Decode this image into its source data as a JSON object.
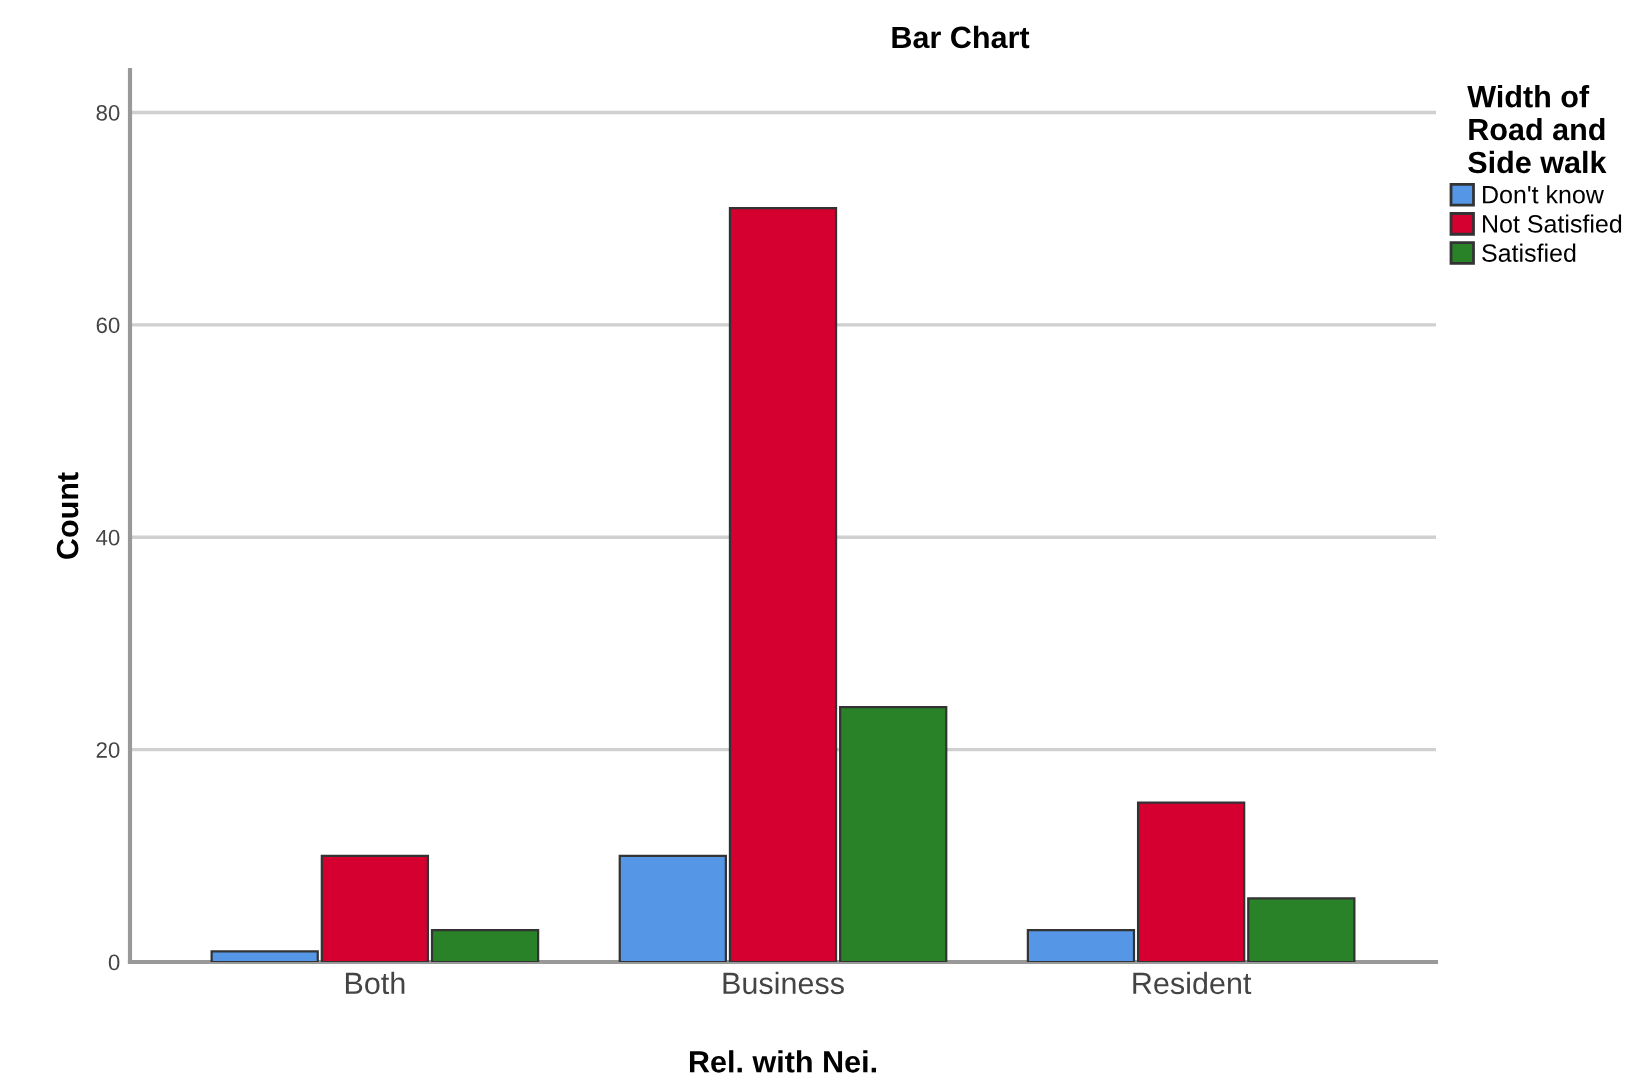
{
  "chart_data": {
    "type": "bar",
    "title": "Bar Chart",
    "xlabel": "Rel. with Nei.",
    "ylabel": "Count",
    "legend_title": "Width of\nRoad and\nSide walk",
    "categories": [
      "Both",
      "Business",
      "Resident"
    ],
    "series": [
      {
        "name": "Don't know",
        "color": "#5596e6",
        "values": [
          1,
          10,
          3
        ]
      },
      {
        "name": "Not Satisfied",
        "color": "#d5002f",
        "values": [
          10,
          71,
          15
        ]
      },
      {
        "name": "Satisfied",
        "color": "#2a8228",
        "values": [
          3,
          24,
          6
        ]
      }
    ],
    "ylim": [
      0,
      84
    ],
    "yticks": [
      0,
      20,
      40,
      60,
      80
    ],
    "grid": "y",
    "legend": "top right"
  }
}
